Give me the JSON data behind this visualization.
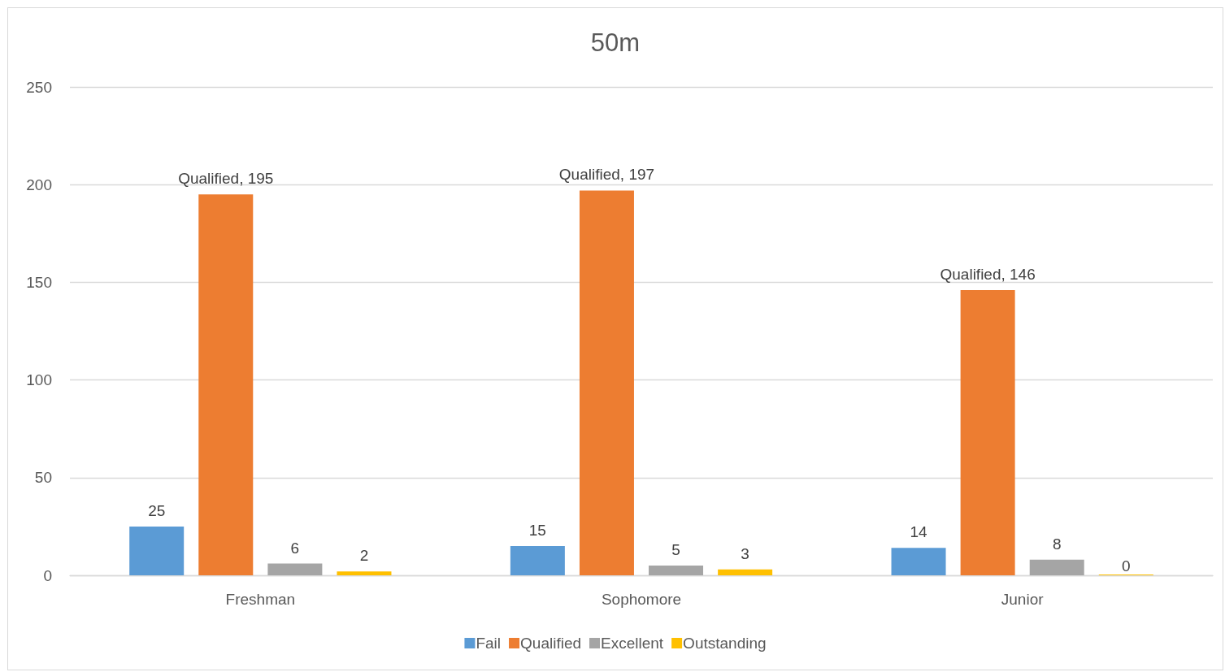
{
  "chart_data": {
    "type": "bar",
    "title": "50m",
    "categories": [
      "Freshman",
      "Sophomore",
      "Junior"
    ],
    "series": [
      {
        "name": "Fail",
        "color": "#5b9bd5",
        "values": [
          25,
          15,
          14
        ],
        "value_labels": [
          "25",
          "15",
          "14"
        ]
      },
      {
        "name": "Qualified",
        "color": "#ed7d31",
        "values": [
          195,
          197,
          146
        ],
        "value_labels": [
          "Qualified, 195",
          "Qualified, 197",
          "Qualified, 146"
        ]
      },
      {
        "name": "Excellent",
        "color": "#a5a5a5",
        "values": [
          6,
          5,
          8
        ],
        "value_labels": [
          "6",
          "5",
          "8"
        ]
      },
      {
        "name": "Outstanding",
        "color": "#ffc000",
        "values": [
          2,
          3,
          0
        ],
        "value_labels": [
          "2",
          "3",
          "0"
        ]
      }
    ],
    "ylim": [
      0,
      250
    ],
    "yticks": [
      0,
      50,
      100,
      150,
      200,
      250
    ],
    "grid": "y",
    "legend": "bottom"
  }
}
